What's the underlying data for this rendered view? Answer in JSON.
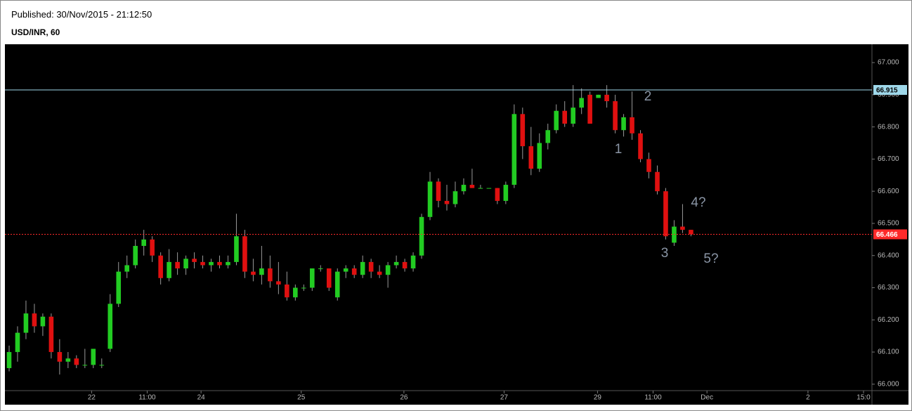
{
  "chart_data": {
    "type": "candlestick",
    "subtitle": "Published: 30/Nov/2015 - 21:12:50",
    "title": "USD/INR, 60",
    "up_color": "#22cc22",
    "down_color": "#e01010",
    "open": [
      66.05,
      66.1,
      66.16,
      66.22,
      66.18,
      66.21,
      66.1,
      66.07,
      66.08,
      66.06,
      66.06,
      66.06,
      66.11,
      66.25,
      66.35,
      66.37,
      66.43,
      66.45,
      66.4,
      66.33,
      66.38,
      66.36,
      66.39,
      66.38,
      66.37,
      66.38,
      66.37,
      66.38,
      66.46,
      66.35,
      66.34,
      66.36,
      66.32,
      66.31,
      66.27,
      66.3,
      66.3,
      66.36,
      66.36,
      66.27,
      66.35,
      66.36,
      66.34,
      66.38,
      66.35,
      66.34,
      66.37,
      66.38,
      66.36,
      66.4,
      66.52,
      66.63,
      66.57,
      66.56,
      66.6,
      66.62,
      66.61,
      66.61,
      66.61,
      66.57,
      66.62,
      66.84,
      66.74,
      66.67,
      66.75,
      66.79,
      66.85,
      66.81,
      66.86,
      66.9,
      66.89,
      66.9,
      66.88,
      66.79,
      66.83,
      66.78,
      66.7,
      66.66,
      66.6,
      66.44,
      66.49,
      66.48
    ],
    "high": [
      66.12,
      66.18,
      66.26,
      66.25,
      66.22,
      66.22,
      66.14,
      66.1,
      66.09,
      66.11,
      66.11,
      66.08,
      66.28,
      66.38,
      66.4,
      66.45,
      66.48,
      66.46,
      66.41,
      66.42,
      66.41,
      66.4,
      66.41,
      66.4,
      66.39,
      66.4,
      66.4,
      66.53,
      66.48,
      66.39,
      66.43,
      66.4,
      66.38,
      66.35,
      66.31,
      66.31,
      66.36,
      66.37,
      66.36,
      66.36,
      66.37,
      66.37,
      66.4,
      66.39,
      66.37,
      66.38,
      66.4,
      66.39,
      66.41,
      66.53,
      66.66,
      66.64,
      66.62,
      66.63,
      66.64,
      66.67,
      66.62,
      66.61,
      66.61,
      66.63,
      66.87,
      66.86,
      66.8,
      66.78,
      66.81,
      66.87,
      66.88,
      66.93,
      66.92,
      66.91,
      66.9,
      66.93,
      66.9,
      66.84,
      66.91,
      66.79,
      66.72,
      66.68,
      66.61,
      66.51,
      66.56,
      66.48
    ],
    "low": [
      66.04,
      66.07,
      66.14,
      66.16,
      66.15,
      66.08,
      66.03,
      66.05,
      66.05,
      66.05,
      66.05,
      66.05,
      66.1,
      66.24,
      66.33,
      66.36,
      66.4,
      66.38,
      66.31,
      66.32,
      66.34,
      66.34,
      66.36,
      66.36,
      66.35,
      66.36,
      66.36,
      66.37,
      66.33,
      66.32,
      66.31,
      66.3,
      66.28,
      66.26,
      66.26,
      66.29,
      66.29,
      66.35,
      66.29,
      66.26,
      66.33,
      66.33,
      66.33,
      66.33,
      66.33,
      66.3,
      66.36,
      66.35,
      66.35,
      66.39,
      66.51,
      66.55,
      66.54,
      66.55,
      66.59,
      66.61,
      66.61,
      66.61,
      66.56,
      66.56,
      66.61,
      66.7,
      66.65,
      66.66,
      66.73,
      66.78,
      66.8,
      66.8,
      66.84,
      66.81,
      66.89,
      66.86,
      66.78,
      66.77,
      66.76,
      66.69,
      66.64,
      66.59,
      66.45,
      66.43,
      66.47,
      66.46
    ],
    "close": [
      66.1,
      66.16,
      66.22,
      66.18,
      66.21,
      66.1,
      66.07,
      66.08,
      66.06,
      66.06,
      66.11,
      66.06,
      66.25,
      66.35,
      66.37,
      66.43,
      66.45,
      66.4,
      66.33,
      66.38,
      66.36,
      66.39,
      66.38,
      66.37,
      66.38,
      66.37,
      66.38,
      66.46,
      66.35,
      66.34,
      66.36,
      66.32,
      66.31,
      66.27,
      66.3,
      66.3,
      66.36,
      66.36,
      66.3,
      66.35,
      66.36,
      66.34,
      66.38,
      66.35,
      66.34,
      66.37,
      66.38,
      66.36,
      66.4,
      66.52,
      66.63,
      66.57,
      66.56,
      66.6,
      66.62,
      66.61,
      66.61,
      66.61,
      66.57,
      66.62,
      66.84,
      66.74,
      66.67,
      66.75,
      66.79,
      66.85,
      66.81,
      66.86,
      66.89,
      66.81,
      66.9,
      66.88,
      66.79,
      66.83,
      66.78,
      66.7,
      66.66,
      66.6,
      66.46,
      66.49,
      66.48,
      66.466
    ],
    "xlim": [
      0,
      103
    ],
    "xticks": [
      {
        "value": 10.3,
        "label": "22"
      },
      {
        "value": 16.9,
        "label": "11:00"
      },
      {
        "value": 23.3,
        "label": "24"
      },
      {
        "value": 35.2,
        "label": "25"
      },
      {
        "value": 47.4,
        "label": "26"
      },
      {
        "value": 59.3,
        "label": "27"
      },
      {
        "value": 70.4,
        "label": "29"
      },
      {
        "value": 77,
        "label": "11:00"
      },
      {
        "value": 83.4,
        "label": "Dec"
      },
      {
        "value": 95.4,
        "label": "2"
      },
      {
        "value": 102,
        "label": "15:0"
      }
    ],
    "ylim": [
      65.98,
      67.057
    ],
    "yticks": [
      {
        "value": 66,
        "label": "66.000"
      },
      {
        "value": 66.1,
        "label": "66.100"
      },
      {
        "value": 66.2,
        "label": "66.200"
      },
      {
        "value": 66.3,
        "label": "66.300"
      },
      {
        "value": 66.4,
        "label": "66.400"
      },
      {
        "value": 66.5,
        "label": "66.500"
      },
      {
        "value": 66.6,
        "label": "66.600"
      },
      {
        "value": 66.7,
        "label": "66.700"
      },
      {
        "value": 66.8,
        "label": "66.800"
      },
      {
        "value": 66.9,
        "label": "66.900"
      },
      {
        "value": 67,
        "label": "67.000"
      }
    ],
    "price_lines": [
      {
        "value": 66.915,
        "color": "#9fd8ea",
        "style": "solid"
      },
      {
        "value": 66.466,
        "color": "#ff2a2a",
        "style": "dotted"
      }
    ],
    "annotations": [
      "1",
      "2",
      "3",
      "4?",
      "5?"
    ]
  }
}
